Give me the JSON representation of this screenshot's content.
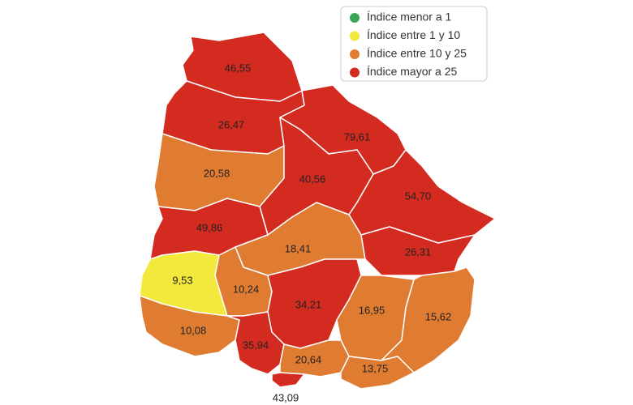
{
  "map": {
    "legend": [
      {
        "name": "Índice menor a 1",
        "color": "#3aa655"
      },
      {
        "name": "Índice entre 1 y 10",
        "color": "#f3e83c"
      },
      {
        "name": "Índice entre 10 y 25",
        "color": "#e07b32"
      },
      {
        "name": "Índice mayor a 25",
        "color": "#d42b20"
      }
    ],
    "regions": [
      {
        "value": 46.55,
        "label": "46,55",
        "color": "#d42b20"
      },
      {
        "value": 26.47,
        "label": "26,47",
        "color": "#d42b20"
      },
      {
        "value": 79.61,
        "label": "79,61",
        "color": "#d42b20"
      },
      {
        "value": 20.58,
        "label": "20,58",
        "color": "#e07b32"
      },
      {
        "value": 40.56,
        "label": "40,56",
        "color": "#d42b20"
      },
      {
        "value": 54.7,
        "label": "54,70",
        "color": "#d42b20"
      },
      {
        "value": 49.86,
        "label": "49,86",
        "color": "#d42b20"
      },
      {
        "value": 18.41,
        "label": "18,41",
        "color": "#e07b32"
      },
      {
        "value": 26.31,
        "label": "26,31",
        "color": "#d42b20"
      },
      {
        "value": 9.53,
        "label": "9,53",
        "color": "#f3e83c"
      },
      {
        "value": 10.24,
        "label": "10,24",
        "color": "#e07b32"
      },
      {
        "value": 34.21,
        "label": "34,21",
        "color": "#d42b20"
      },
      {
        "value": 16.95,
        "label": "16,95",
        "color": "#e07b32"
      },
      {
        "value": 15.62,
        "label": "15,62",
        "color": "#e07b32"
      },
      {
        "value": 10.08,
        "label": "10,08",
        "color": "#e07b32"
      },
      {
        "value": 35.94,
        "label": "35,94",
        "color": "#d42b20"
      },
      {
        "value": 20.64,
        "label": "20,64",
        "color": "#e07b32"
      },
      {
        "value": 13.75,
        "label": "13,75",
        "color": "#e07b32"
      },
      {
        "value": 43.09,
        "label": "43,09",
        "color": "#d42b20"
      }
    ]
  }
}
